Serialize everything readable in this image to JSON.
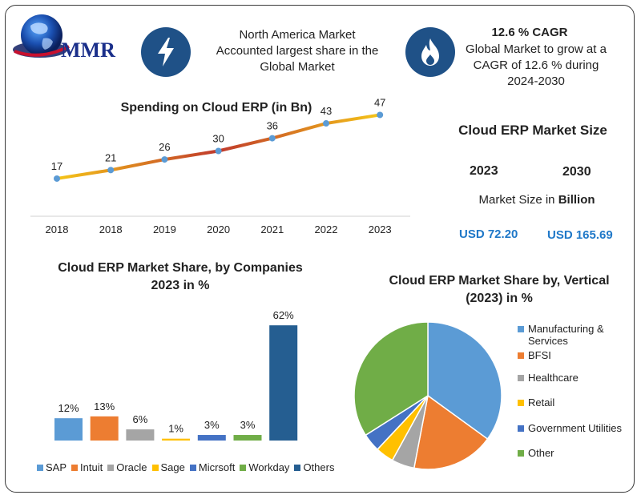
{
  "logo": {
    "text": "MMR"
  },
  "header": {
    "left_text": "North America Market Accounted largest share in the Global Market",
    "right_title": "12.6 % CAGR",
    "right_text": "Global Market to grow at a CAGR of 12.6 % during 2024-2030",
    "left_icon": "lightning-icon",
    "right_icon": "flame-icon",
    "icon_color": "#1f5187"
  },
  "market_size": {
    "title": "Cloud ERP Market Size",
    "year_a": "2023",
    "year_b": "2030",
    "unit_prefix": "Market Size in ",
    "unit_bold": "Billion",
    "value_a": "USD 72.20",
    "value_b": "USD 165.69"
  },
  "chart_data": [
    {
      "type": "line",
      "title": "Spending on Cloud ERP (in Bn)",
      "categories": [
        "2018",
        "2018",
        "2019",
        "2020",
        "2021",
        "2022",
        "2023"
      ],
      "values": [
        17,
        21,
        26,
        30,
        36,
        43,
        47
      ],
      "ylim": [
        0,
        55
      ],
      "grid": false,
      "colors": {
        "line_start": "#f5c518",
        "line_mid": "#c0392b",
        "line_end": "#f5c518",
        "point": "#5b9bd5"
      }
    },
    {
      "type": "bar",
      "title": "Cloud ERP Market Share, by Companies 2023 in %",
      "categories": [
        "SAP",
        "Intuit",
        "Oracle",
        "Sage",
        "Micrsoft",
        "Workday",
        "Others"
      ],
      "values": [
        12,
        13,
        6,
        1,
        3,
        3,
        62
      ],
      "value_labels": [
        "12%",
        "13%",
        "6%",
        "1%",
        "3%",
        "3%",
        "62%"
      ],
      "colors": [
        "#5b9bd5",
        "#ed7d31",
        "#a5a5a5",
        "#ffc000",
        "#4472c4",
        "#70ad47",
        "#255e91"
      ],
      "legend": "bottom"
    },
    {
      "type": "pie",
      "title": "Cloud ERP Market Share by, Vertical (2023) in %",
      "labels": [
        "Manufacturing & Services",
        "BFSI",
        "Healthcare",
        "Retail",
        "Government Utilities",
        "Other"
      ],
      "values": [
        35,
        18,
        5,
        4,
        4,
        34
      ],
      "colors": [
        "#5b9bd5",
        "#ed7d31",
        "#a5a5a5",
        "#ffc000",
        "#4472c4",
        "#70ad47"
      ],
      "legend": "right"
    }
  ]
}
